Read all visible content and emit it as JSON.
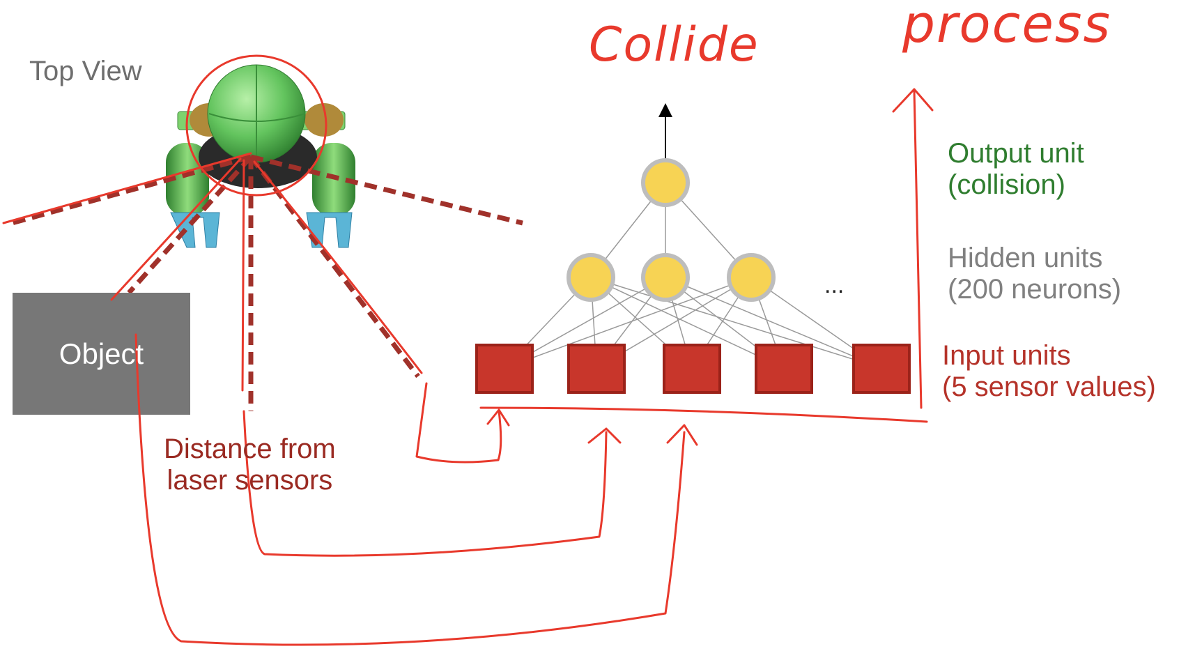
{
  "labels": {
    "top_view": "Top View",
    "object": "Object",
    "distance_line1": "Distance from",
    "distance_line2": "laser sensors",
    "output_line1": "Output unit",
    "output_line2": "(collision)",
    "hidden_line1": "Hidden units",
    "hidden_line2": "(200 neurons)",
    "input_line1": "Input units",
    "input_line2": "(5 sensor values)",
    "ellipsis": "..."
  },
  "annotations": {
    "collide": "Collide",
    "process": "process"
  },
  "network": {
    "input_count": 5,
    "hidden_count": 3,
    "output_count": 1
  },
  "colors": {
    "input_fill": "#c8362b",
    "input_stroke": "#9b2219",
    "neuron_fill": "#f7d354",
    "neuron_stroke": "#bdbdbd",
    "laser": "#a0312a",
    "ink": "#e8392c",
    "robot_body": "#6fc46a",
    "robot_gripper": "#5bb5d6"
  }
}
